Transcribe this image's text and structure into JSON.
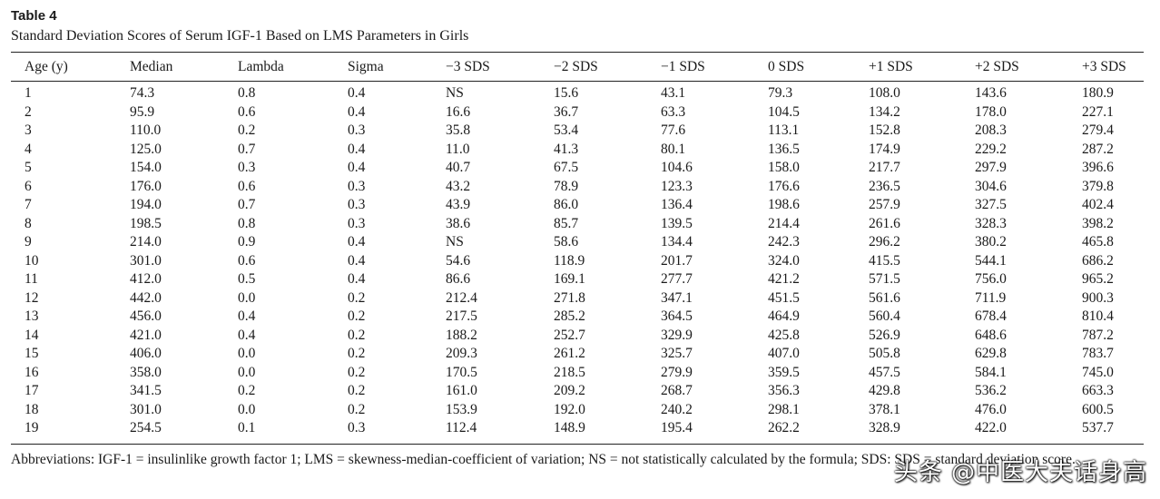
{
  "table": {
    "label": "Table 4",
    "caption": "Standard Deviation Scores of Serum IGF-1 Based on LMS Parameters in Girls",
    "columns": [
      "Age (y)",
      "Median",
      "Lambda",
      "Sigma",
      "−3 SDS",
      "−2 SDS",
      "−1 SDS",
      "0 SDS",
      "+1 SDS",
      "+2 SDS",
      "+3 SDS"
    ],
    "rows": [
      [
        "1",
        "74.3",
        "0.8",
        "0.4",
        "NS",
        "15.6",
        "43.1",
        "79.3",
        "108.0",
        "143.6",
        "180.9"
      ],
      [
        "2",
        "95.9",
        "0.6",
        "0.4",
        "16.6",
        "36.7",
        "63.3",
        "104.5",
        "134.2",
        "178.0",
        "227.1"
      ],
      [
        "3",
        "110.0",
        "0.2",
        "0.3",
        "35.8",
        "53.4",
        "77.6",
        "113.1",
        "152.8",
        "208.3",
        "279.4"
      ],
      [
        "4",
        "125.0",
        "0.7",
        "0.4",
        "11.0",
        "41.3",
        "80.1",
        "136.5",
        "174.9",
        "229.2",
        "287.2"
      ],
      [
        "5",
        "154.0",
        "0.3",
        "0.4",
        "40.7",
        "67.5",
        "104.6",
        "158.0",
        "217.7",
        "297.9",
        "396.6"
      ],
      [
        "6",
        "176.0",
        "0.6",
        "0.3",
        "43.2",
        "78.9",
        "123.3",
        "176.6",
        "236.5",
        "304.6",
        "379.8"
      ],
      [
        "7",
        "194.0",
        "0.7",
        "0.3",
        "43.9",
        "86.0",
        "136.4",
        "198.6",
        "257.9",
        "327.5",
        "402.4"
      ],
      [
        "8",
        "198.5",
        "0.8",
        "0.3",
        "38.6",
        "85.7",
        "139.5",
        "214.4",
        "261.6",
        "328.3",
        "398.2"
      ],
      [
        "9",
        "214.0",
        "0.9",
        "0.4",
        "NS",
        "58.6",
        "134.4",
        "242.3",
        "296.2",
        "380.2",
        "465.8"
      ],
      [
        "10",
        "301.0",
        "0.6",
        "0.4",
        "54.6",
        "118.9",
        "201.7",
        "324.0",
        "415.5",
        "544.1",
        "686.2"
      ],
      [
        "11",
        "412.0",
        "0.5",
        "0.4",
        "86.6",
        "169.1",
        "277.7",
        "421.2",
        "571.5",
        "756.0",
        "965.2"
      ],
      [
        "12",
        "442.0",
        "0.0",
        "0.2",
        "212.4",
        "271.8",
        "347.1",
        "451.5",
        "561.6",
        "711.9",
        "900.3"
      ],
      [
        "13",
        "456.0",
        "0.4",
        "0.2",
        "217.5",
        "285.2",
        "364.5",
        "464.9",
        "560.4",
        "678.4",
        "810.4"
      ],
      [
        "14",
        "421.0",
        "0.4",
        "0.2",
        "188.2",
        "252.7",
        "329.9",
        "425.8",
        "526.9",
        "648.6",
        "787.2"
      ],
      [
        "15",
        "406.0",
        "0.0",
        "0.2",
        "209.3",
        "261.2",
        "325.7",
        "407.0",
        "505.8",
        "629.8",
        "783.7"
      ],
      [
        "16",
        "358.0",
        "0.0",
        "0.2",
        "170.5",
        "218.5",
        "279.9",
        "359.5",
        "457.5",
        "584.1",
        "745.0"
      ],
      [
        "17",
        "341.5",
        "0.2",
        "0.2",
        "161.0",
        "209.2",
        "268.7",
        "356.3",
        "429.8",
        "536.2",
        "663.3"
      ],
      [
        "18",
        "301.0",
        "0.0",
        "0.2",
        "153.9",
        "192.0",
        "240.2",
        "298.1",
        "378.1",
        "476.0",
        "600.5"
      ],
      [
        "19",
        "254.5",
        "0.1",
        "0.3",
        "112.4",
        "148.9",
        "195.4",
        "262.2",
        "328.9",
        "422.0",
        "537.7"
      ]
    ],
    "footnote": "Abbreviations: IGF-1 = insulinlike growth factor 1; LMS = skewness-median-coefficient of variation; NS = not statistically calculated by the formula; SDS: SDS = standard deviation score."
  },
  "watermark": {
    "text": "头条 @中医大夫话身高"
  }
}
